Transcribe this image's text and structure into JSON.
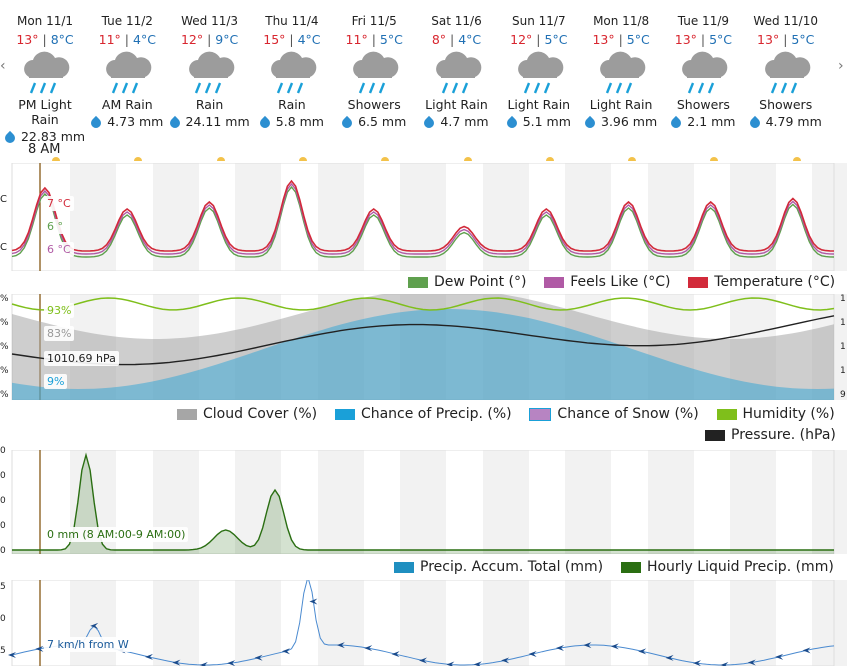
{
  "now_label": "8 AM",
  "nav": {
    "left": "‹",
    "right": "›"
  },
  "days": [
    {
      "name": "Mon 11/1",
      "hi": "13°",
      "lo": "8°C",
      "cond": "PM Light Rain",
      "precip": "22.83 mm",
      "icon": "rain-cloud-icon"
    },
    {
      "name": "Tue 11/2",
      "hi": "11°",
      "lo": "4°C",
      "cond": "AM Rain",
      "precip": "4.73 mm",
      "icon": "rain-cloud-icon"
    },
    {
      "name": "Wed 11/3",
      "hi": "12°",
      "lo": "9°C",
      "cond": "Rain",
      "precip": "24.11 mm",
      "icon": "rain-cloud-icon"
    },
    {
      "name": "Thu 11/4",
      "hi": "15°",
      "lo": "4°C",
      "cond": "Rain",
      "precip": "5.8 mm",
      "icon": "rain-cloud-icon"
    },
    {
      "name": "Fri 11/5",
      "hi": "11°",
      "lo": "5°C",
      "cond": "Showers",
      "precip": "6.5 mm",
      "icon": "rain-cloud-icon"
    },
    {
      "name": "Sat 11/6",
      "hi": "8°",
      "lo": "4°C",
      "cond": "Light Rain",
      "precip": "4.7 mm",
      "icon": "rain-cloud-icon"
    },
    {
      "name": "Sun 11/7",
      "hi": "12°",
      "lo": "5°C",
      "cond": "Light Rain",
      "precip": "5.1 mm",
      "icon": "rain-cloud-icon"
    },
    {
      "name": "Mon 11/8",
      "hi": "13°",
      "lo": "5°C",
      "cond": "Light Rain",
      "precip": "3.96 mm",
      "icon": "rain-cloud-icon"
    },
    {
      "name": "Tue 11/9",
      "hi": "13°",
      "lo": "5°C",
      "cond": "Showers",
      "precip": "2.1 mm",
      "icon": "rain-cloud-icon"
    },
    {
      "name": "Wed 11/10",
      "hi": "13°",
      "lo": "5°C",
      "cond": "Showers",
      "precip": "4.79 mm",
      "icon": "rain-cloud-icon"
    }
  ],
  "temp_panel": {
    "labels": {
      "temp": "7 °C",
      "dew": "6 °",
      "feels": "6 °C"
    },
    "axis_labels": [
      "C",
      "C"
    ],
    "legend": {
      "dew": "Dew Point (°)",
      "feels": "Feels Like (°C)",
      "temp": "Temperature (°C)"
    },
    "colors": {
      "dew": "#5fa04e",
      "feels": "#b05aa5",
      "temp": "#d22a3a"
    }
  },
  "cloud_panel": {
    "labels": {
      "humidity": "93%",
      "cloud": "83%",
      "pressure": "1010.69 hPa",
      "precip_chance": "9%"
    },
    "legend": {
      "cloud": "Cloud Cover (%)",
      "precip": "Chance of Precip. (%)",
      "snow": "Chance of Snow (%)",
      "humidity": "Humidity (%)",
      "pressure": "Pressure. (hPa)"
    },
    "left_ticks": [
      "%",
      "%",
      "%",
      "%",
      "%"
    ],
    "right_ticks": [
      "1",
      "1",
      "1",
      "1",
      "9"
    ],
    "colors": {
      "cloud": "#a6a6a6",
      "precip": "#1aa0d8",
      "snow": "#b784c2",
      "humidity": "#7fbf1b",
      "pressure": "#222222"
    }
  },
  "precip_panel": {
    "label": "0 mm (8 AM:00-9 AM:00)",
    "ticks": [
      "0",
      "0",
      "0",
      "0",
      "0"
    ],
    "legend": {
      "total": "Precip. Accum. Total (mm)",
      "hourly": "Hourly Liquid Precip. (mm)"
    },
    "colors": {
      "total": "#1f8fc0",
      "hourly": "#2a6e12"
    }
  },
  "wind_panel": {
    "label": "7 km/h from W",
    "ticks": [
      "5",
      "0",
      "5"
    ]
  }
}
